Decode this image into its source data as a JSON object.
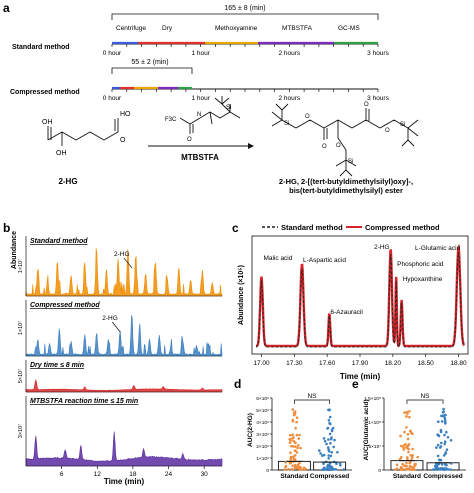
{
  "panel_a": {
    "letter": "a",
    "total_duration": "165 ± 8 (min)",
    "compressed_duration": "55 ± 2 (min)",
    "standard_label": "Standard method",
    "compressed_label": "Compressed method",
    "steps": [
      "Centrifuge",
      "Dry",
      "Methoxyamine",
      "MTBSTFA",
      "GC-MS"
    ],
    "step_colors": [
      "#3b5bdb",
      "#e03131",
      "#e6a700",
      "#7b2cbf",
      "#2f9e44"
    ],
    "ticks": [
      "0 hour",
      "1 hour",
      "2 hours",
      "3 hours"
    ],
    "reactant_name": "2-HG",
    "reagent_name": "MTBSTFA",
    "reagent_group": "F3C",
    "product_name_line1": "2-HG, 2-[(tert-butyldimethylsilyl)oxy]-,",
    "product_name_line2": "bis(tert-butyldimethylsilyl) ester",
    "atoms": {
      "oh": "OH",
      "ho": "HO",
      "o": "O",
      "si": "Si",
      "n": "N"
    }
  },
  "panel_b": {
    "letter": "b",
    "ylabel": "Abundance",
    "xlabel": "Time (min)",
    "xticks": [
      "6",
      "12",
      "18",
      "24",
      "30"
    ],
    "traces": [
      {
        "title": "Standard method",
        "scale": "1×10⁷",
        "color": "#f08c00",
        "annotation": "2-HG"
      },
      {
        "title": "Compressed method",
        "scale": "1×10⁷",
        "color": "#3a7fc1",
        "annotation": "2-HG"
      },
      {
        "title": "Dry time ≤ 8 min",
        "scale": "5×10⁷",
        "color": "#d62828",
        "annotation": ""
      },
      {
        "title": "MTBSTFA reaction time ≤ 15 min",
        "scale": "3×10⁷",
        "color": "#5a2ca0",
        "annotation": ""
      }
    ]
  },
  "panel_c": {
    "letter": "c",
    "legend_standard": "Standard method",
    "legend_compressed": "Compressed method",
    "ylabel": "Abundance (×10⁵)",
    "xlabel": "Time (min)",
    "xticks": [
      "17.00",
      "17.30",
      "17.60",
      "17.90",
      "18.20",
      "18.50",
      "18.80"
    ],
    "peaks": [
      "Malic acid",
      "L-Aspartic acid",
      "6-Azauracil",
      "2-HG",
      "Phosphoric acid",
      "Hypoxanthine",
      "L-Glutamic acid"
    ],
    "colors": {
      "standard": "#222222",
      "compressed": "#d7262b"
    }
  },
  "panel_d": {
    "letter": "d",
    "ylabel": "AUC(2-HG)",
    "yticks": [
      "0",
      "1×10⁶",
      "2×10⁶",
      "3×10⁶",
      "4×10⁶",
      "5×10⁶",
      "6×10⁶"
    ],
    "categories": [
      "Standard",
      "Compressed"
    ],
    "significance": "NS",
    "colors": [
      "#f08c3c",
      "#3a7fc1"
    ]
  },
  "panel_e": {
    "letter": "e",
    "ylabel": "AUC(Glutamic acid)",
    "yticks": [
      "0",
      "5×10⁷",
      "1×10⁸",
      "1.5×10⁸"
    ],
    "categories": [
      "Standard",
      "Compressed"
    ],
    "significance": "NS",
    "colors": [
      "#f08c3c",
      "#3a7fc1"
    ]
  }
}
